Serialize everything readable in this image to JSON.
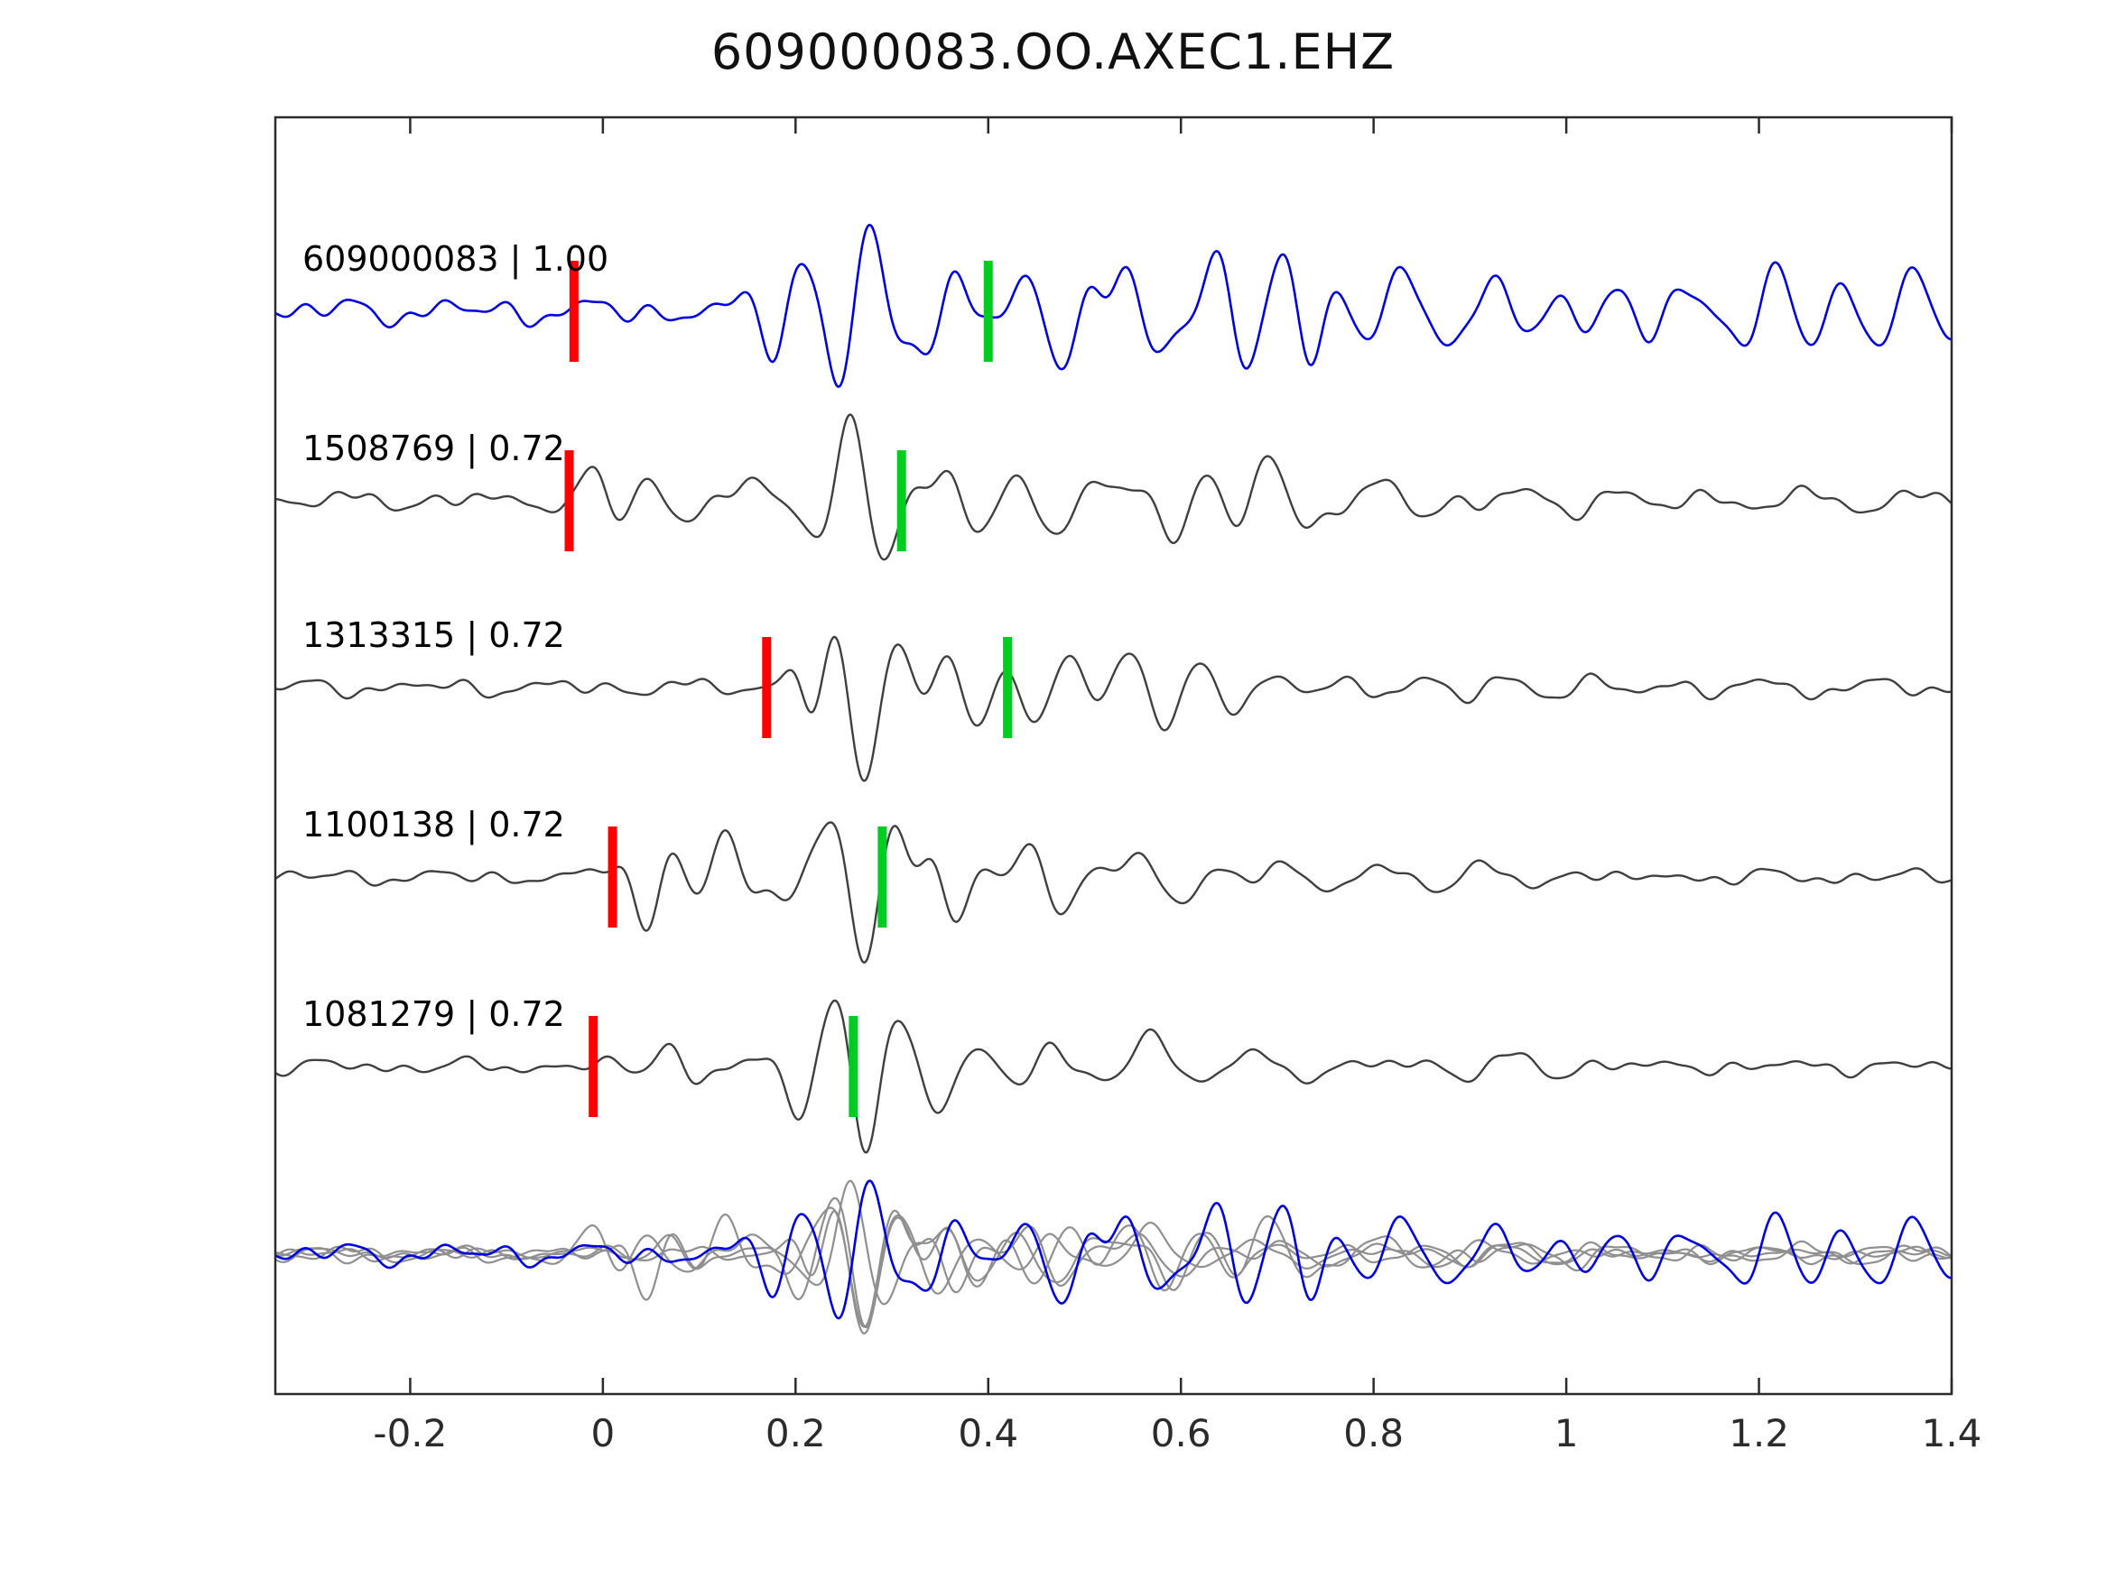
{
  "chart_data": {
    "type": "line",
    "title": "609000083.OO.AXEC1.EHZ",
    "xlabel": "",
    "ylabel": "",
    "xlim": [
      -0.34,
      1.4
    ],
    "grid": false,
    "legend_position": "none",
    "xticks": [
      {
        "v": -0.2,
        "label": "-0.2"
      },
      {
        "v": 0,
        "label": "0"
      },
      {
        "v": 0.2,
        "label": "0.2"
      },
      {
        "v": 0.4,
        "label": "0.4"
      },
      {
        "v": 0.6,
        "label": "0.6"
      },
      {
        "v": 0.8,
        "label": "0.8"
      },
      {
        "v": 1,
        "label": "1"
      },
      {
        "v": 1.2,
        "label": "1.2"
      },
      {
        "v": 1.4,
        "label": "1.4"
      }
    ],
    "colors": {
      "reference_trace": "#0000e0",
      "match_trace": "#3f3f3f",
      "overlay_gray": "#8f8f8f",
      "overlay_blue": "#0000e0",
      "pick_red": "#ff0000",
      "pick_green": "#00cc22",
      "frame": "#2b2b2b",
      "tick_label": "#2b2b2b"
    },
    "traces": [
      {
        "event_id": "609000083",
        "correlation": "1.00",
        "label": "609000083 | 1.00",
        "role": "reference",
        "red_pick": -0.03,
        "green_pick": 0.4,
        "seed": 7,
        "noise": 0.14,
        "bursts": [
          {
            "c": 0.19,
            "w": 0.03,
            "a": 0.5,
            "f": 16
          },
          {
            "c": 0.265,
            "w": 0.045,
            "a": 1.0,
            "f": 15
          },
          {
            "c": 0.35,
            "w": 0.04,
            "a": 0.45,
            "f": 14
          },
          {
            "c": 0.47,
            "w": 0.05,
            "a": 0.5,
            "f": 13
          },
          {
            "c": 0.56,
            "w": 0.04,
            "a": 0.55,
            "f": 14
          },
          {
            "c": 0.645,
            "w": 0.045,
            "a": 0.85,
            "f": 14
          },
          {
            "c": 0.72,
            "w": 0.04,
            "a": 0.55,
            "f": 15
          },
          {
            "c": 0.83,
            "w": 0.06,
            "a": 0.4,
            "f": 13
          },
          {
            "c": 0.95,
            "w": 0.07,
            "a": 0.4,
            "f": 14
          },
          {
            "c": 1.08,
            "w": 0.08,
            "a": 0.38,
            "f": 13
          },
          {
            "c": 1.22,
            "w": 0.09,
            "a": 0.35,
            "f": 14
          },
          {
            "c": 1.35,
            "w": 0.08,
            "a": 0.33,
            "f": 13
          }
        ]
      },
      {
        "event_id": "1508769",
        "correlation": "0.72",
        "label": "1508769 | 0.72",
        "role": "match",
        "red_pick": -0.035,
        "green_pick": 0.31,
        "seed": 21,
        "noise": 0.1,
        "bursts": [
          {
            "c": 0.0,
            "w": 0.025,
            "a": 0.45,
            "f": 13
          },
          {
            "c": 0.06,
            "w": 0.03,
            "a": 0.3,
            "f": 11
          },
          {
            "c": 0.16,
            "w": 0.03,
            "a": 0.25,
            "f": 12
          },
          {
            "c": 0.265,
            "w": 0.05,
            "a": 1.0,
            "f": 13
          },
          {
            "c": 0.37,
            "w": 0.04,
            "a": 0.45,
            "f": 12
          },
          {
            "c": 0.48,
            "w": 0.05,
            "a": 0.35,
            "f": 11
          },
          {
            "c": 0.6,
            "w": 0.05,
            "a": 0.5,
            "f": 12
          },
          {
            "c": 0.7,
            "w": 0.05,
            "a": 0.45,
            "f": 12
          },
          {
            "c": 0.82,
            "w": 0.07,
            "a": 0.28,
            "f": 11
          },
          {
            "c": 1.0,
            "w": 0.12,
            "a": 0.16,
            "f": 10
          },
          {
            "c": 1.25,
            "w": 0.12,
            "a": 0.12,
            "f": 11
          }
        ]
      },
      {
        "event_id": "1313315",
        "correlation": "0.72",
        "label": "1313315 | 0.72",
        "role": "match",
        "red_pick": 0.17,
        "green_pick": 0.42,
        "seed": 33,
        "noise": 0.09,
        "bursts": [
          {
            "c": 0.21,
            "w": 0.025,
            "a": 0.55,
            "f": 14
          },
          {
            "c": 0.27,
            "w": 0.045,
            "a": 1.0,
            "f": 13
          },
          {
            "c": 0.38,
            "w": 0.04,
            "a": 0.5,
            "f": 13
          },
          {
            "c": 0.47,
            "w": 0.04,
            "a": 0.4,
            "f": 12
          },
          {
            "c": 0.56,
            "w": 0.05,
            "a": 0.45,
            "f": 12
          },
          {
            "c": 0.66,
            "w": 0.05,
            "a": 0.3,
            "f": 11
          },
          {
            "c": 0.85,
            "w": 0.1,
            "a": 0.14,
            "f": 10
          },
          {
            "c": 1.15,
            "w": 0.15,
            "a": 0.11,
            "f": 11
          }
        ]
      },
      {
        "event_id": "1100138",
        "correlation": "0.72",
        "label": "1100138 | 0.72",
        "role": "match",
        "red_pick": 0.01,
        "green_pick": 0.29,
        "seed": 44,
        "noise": 0.08,
        "bursts": [
          {
            "c": 0.05,
            "w": 0.035,
            "a": 0.6,
            "f": 14
          },
          {
            "c": 0.12,
            "w": 0.035,
            "a": 0.45,
            "f": 13
          },
          {
            "c": 0.21,
            "w": 0.03,
            "a": 0.4,
            "f": 13
          },
          {
            "c": 0.275,
            "w": 0.045,
            "a": 1.0,
            "f": 14
          },
          {
            "c": 0.36,
            "w": 0.04,
            "a": 0.55,
            "f": 13
          },
          {
            "c": 0.46,
            "w": 0.05,
            "a": 0.4,
            "f": 12
          },
          {
            "c": 0.58,
            "w": 0.05,
            "a": 0.35,
            "f": 11
          },
          {
            "c": 0.72,
            "w": 0.06,
            "a": 0.22,
            "f": 11
          },
          {
            "c": 0.95,
            "w": 0.12,
            "a": 0.13,
            "f": 10
          }
        ]
      },
      {
        "event_id": "1081279",
        "correlation": "0.72",
        "label": "1081279 | 0.72",
        "role": "match",
        "red_pick": -0.01,
        "green_pick": 0.26,
        "seed": 55,
        "noise": 0.08,
        "bursts": [
          {
            "c": 0.08,
            "w": 0.035,
            "a": 0.35,
            "f": 12
          },
          {
            "c": 0.21,
            "w": 0.03,
            "a": 0.5,
            "f": 13
          },
          {
            "c": 0.27,
            "w": 0.04,
            "a": 0.95,
            "f": 14
          },
          {
            "c": 0.35,
            "w": 0.035,
            "a": 0.45,
            "f": 12
          },
          {
            "c": 0.45,
            "w": 0.04,
            "a": 0.28,
            "f": 11
          },
          {
            "c": 0.57,
            "w": 0.05,
            "a": 0.35,
            "f": 9
          },
          {
            "c": 0.7,
            "w": 0.06,
            "a": 0.18,
            "f": 10
          },
          {
            "c": 0.95,
            "w": 0.12,
            "a": 0.1,
            "f": 10
          }
        ]
      }
    ],
    "overlay": {
      "description": "all traces superimposed, matches in gray under reference in blue",
      "members": [
        {
          "source_trace": 1,
          "role": "gray"
        },
        {
          "source_trace": 2,
          "role": "gray"
        },
        {
          "source_trace": 3,
          "role": "gray"
        },
        {
          "source_trace": 4,
          "role": "gray"
        },
        {
          "source_trace": 0,
          "role": "blue"
        }
      ]
    }
  }
}
